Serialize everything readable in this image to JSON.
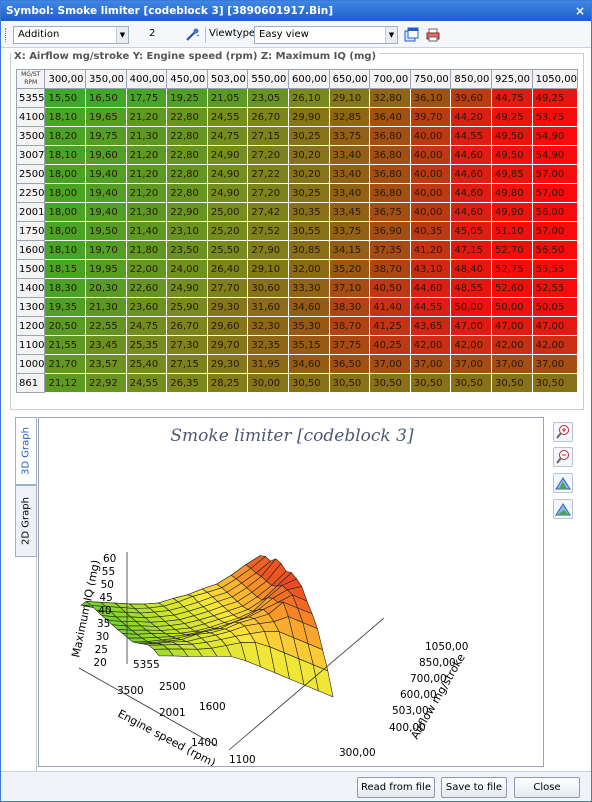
{
  "window": {
    "title": "Symbol: Smoke limiter [codeblock 3] [3890601917.Bin]",
    "close_glyph": "×"
  },
  "toolbar": {
    "operation_value": "Addition",
    "amount_value": "2",
    "viewtype_label": "Viewtype",
    "viewtype_value": "Easy view"
  },
  "table": {
    "group_label": "X: Airflow mg/stroke Y: Engine speed (rpm) Z: Maximum IQ (mg)",
    "corner_top": "MG/ST",
    "corner_bottom": "RPM",
    "columns": [
      "300,00",
      "350,00",
      "400,00",
      "450,00",
      "503,00",
      "550,00",
      "600,00",
      "650,00",
      "700,00",
      "750,00",
      "850,00",
      "925,00",
      "1050,00"
    ],
    "rows": [
      {
        "rpm": "5355",
        "values": [
          "15,50",
          "16,50",
          "17,75",
          "19,25",
          "21,05",
          "23,05",
          "26,10",
          "29,10",
          "32,80",
          "36,10",
          "39,60",
          "44,75",
          "49,25"
        ]
      },
      {
        "rpm": "4100",
        "values": [
          "18,10",
          "19,65",
          "21,20",
          "22,80",
          "24,55",
          "26,70",
          "29,90",
          "32,85",
          "36,40",
          "39,70",
          "44,20",
          "49,25",
          "53,75"
        ]
      },
      {
        "rpm": "3500",
        "values": [
          "18,20",
          "19,75",
          "21,30",
          "22,80",
          "24,75",
          "27,15",
          "30,25",
          "33,75",
          "36,80",
          "40,00",
          "44,55",
          "49,50",
          "54,90"
        ]
      },
      {
        "rpm": "3007",
        "values": [
          "18,10",
          "19,60",
          "21,20",
          "22,80",
          "24,90",
          "27,20",
          "30,20",
          "33,40",
          "36,80",
          "40,00",
          "44,60",
          "49,50",
          "54,90"
        ]
      },
      {
        "rpm": "2500",
        "values": [
          "18,00",
          "19,40",
          "21,20",
          "22,80",
          "24,90",
          "27,22",
          "30,20",
          "33,40",
          "36,80",
          "40,00",
          "44,60",
          "49,85",
          "57,00"
        ]
      },
      {
        "rpm": "2250",
        "values": [
          "18,00",
          "19,40",
          "21,20",
          "22,80",
          "24,90",
          "27,20",
          "30,25",
          "33,40",
          "36,80",
          "40,00",
          "44,60",
          "49,80",
          "57,00"
        ]
      },
      {
        "rpm": "2001",
        "values": [
          "18,00",
          "19,40",
          "21,30",
          "22,90",
          "25,00",
          "27,42",
          "30,35",
          "33,45",
          "36,75",
          "40,00",
          "44,60",
          "49,90",
          "56,00"
        ]
      },
      {
        "rpm": "1750",
        "values": [
          "18,00",
          "19,50",
          "21,40",
          "23,10",
          "25,20",
          "27,52",
          "30,55",
          "33,75",
          "36,90",
          "40,35",
          "45,05",
          "51,10",
          "57,00"
        ]
      },
      {
        "rpm": "1600",
        "values": [
          "18,10",
          "19,70",
          "21,80",
          "23,50",
          "25,50",
          "27,90",
          "30,85",
          "34,15",
          "37,35",
          "41,20",
          "47,15",
          "52,70",
          "56,50"
        ]
      },
      {
        "rpm": "1500",
        "values": [
          "18,15",
          "19,95",
          "22,00",
          "24,00",
          "26,40",
          "29,10",
          "32,00",
          "35,20",
          "38,70",
          "43,10",
          "48,40",
          "52,75",
          "55,55"
        ]
      },
      {
        "rpm": "1400",
        "values": [
          "18,30",
          "20,30",
          "22,60",
          "24,90",
          "27,70",
          "30,60",
          "33,30",
          "37,10",
          "40,50",
          "44,60",
          "48,55",
          "52,60",
          "52,55"
        ]
      },
      {
        "rpm": "1300",
        "values": [
          "19,35",
          "21,30",
          "23,60",
          "25,90",
          "29,30",
          "31,60",
          "34,60",
          "38,30",
          "41,40",
          "44,55",
          "50,00",
          "50,00",
          "50,05"
        ]
      },
      {
        "rpm": "1200",
        "values": [
          "20,50",
          "22,55",
          "24,75",
          "26,70",
          "29,60",
          "32,30",
          "35,30",
          "38,70",
          "41,25",
          "43,65",
          "47,00",
          "47,00",
          "47,00"
        ]
      },
      {
        "rpm": "1100",
        "values": [
          "21,55",
          "23,45",
          "25,35",
          "27,30",
          "29,70",
          "32,35",
          "35,15",
          "37,75",
          "40,25",
          "42,00",
          "42,00",
          "42,00",
          "42,00"
        ]
      },
      {
        "rpm": "1000",
        "values": [
          "21,70",
          "23,57",
          "25,40",
          "27,15",
          "29,30",
          "31,95",
          "34,60",
          "36,50",
          "37,00",
          "37,00",
          "37,00",
          "37,00",
          "37,00"
        ]
      },
      {
        "rpm": "861",
        "values": [
          "21,12",
          "22,92",
          "24,55",
          "26,35",
          "28,25",
          "30,00",
          "30,50",
          "30,50",
          "30,50",
          "30,50",
          "30,50",
          "30,50",
          "30,50"
        ]
      }
    ]
  },
  "graph": {
    "title": "Smoke limiter [codeblock 3]",
    "tabs": [
      "3D Graph",
      "2D Graph"
    ],
    "z_axis_label": "Maximum IQ (mg)",
    "y_axis_label": "Engine speed (rpm)",
    "x_axis_label": "Airflow mg/stroke",
    "z_ticks": [
      "60",
      "55",
      "50",
      "45",
      "40",
      "35",
      "30",
      "25",
      "20"
    ],
    "y_ticks": [
      "5355",
      "3500",
      "2500",
      "2001",
      "1600",
      "1400",
      "1100"
    ],
    "x_ticks": [
      "1050,00",
      "850,00",
      "700,00",
      "600,00",
      "503,00",
      "400,00",
      "300,00"
    ]
  },
  "buttons": {
    "read_from_file": "Read from file",
    "save_to_file": "Save to file",
    "close": "Close"
  }
}
